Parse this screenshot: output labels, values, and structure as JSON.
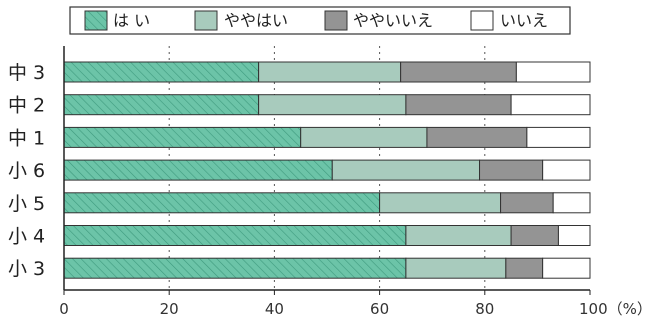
{
  "chart_data": {
    "type": "bar",
    "orientation": "horizontal",
    "stacked": true,
    "categories": [
      "中 3",
      "中 2",
      "中 1",
      "小 6",
      "小 5",
      "小 4",
      "小 3"
    ],
    "series": [
      {
        "name": "は い",
        "color": "#6cc4a8",
        "pattern": "hatch",
        "values": [
          37,
          37,
          45,
          51,
          60,
          65,
          65
        ]
      },
      {
        "name": "ややはい",
        "color": "#a8cbbd",
        "values": [
          27,
          28,
          24,
          28,
          23,
          20,
          19
        ]
      },
      {
        "name": "ややいいえ",
        "color": "#949494",
        "values": [
          22,
          20,
          19,
          12,
          10,
          9,
          7
        ]
      },
      {
        "name": "いいえ",
        "color": "#ffffff",
        "values": [
          14,
          15,
          12,
          9,
          7,
          6,
          9
        ]
      }
    ],
    "xlim": [
      0,
      100
    ],
    "xticks": [
      "0",
      "20",
      "40",
      "60",
      "80",
      "100（%）"
    ],
    "legend_position": "top",
    "grid": "dotted vertical"
  }
}
